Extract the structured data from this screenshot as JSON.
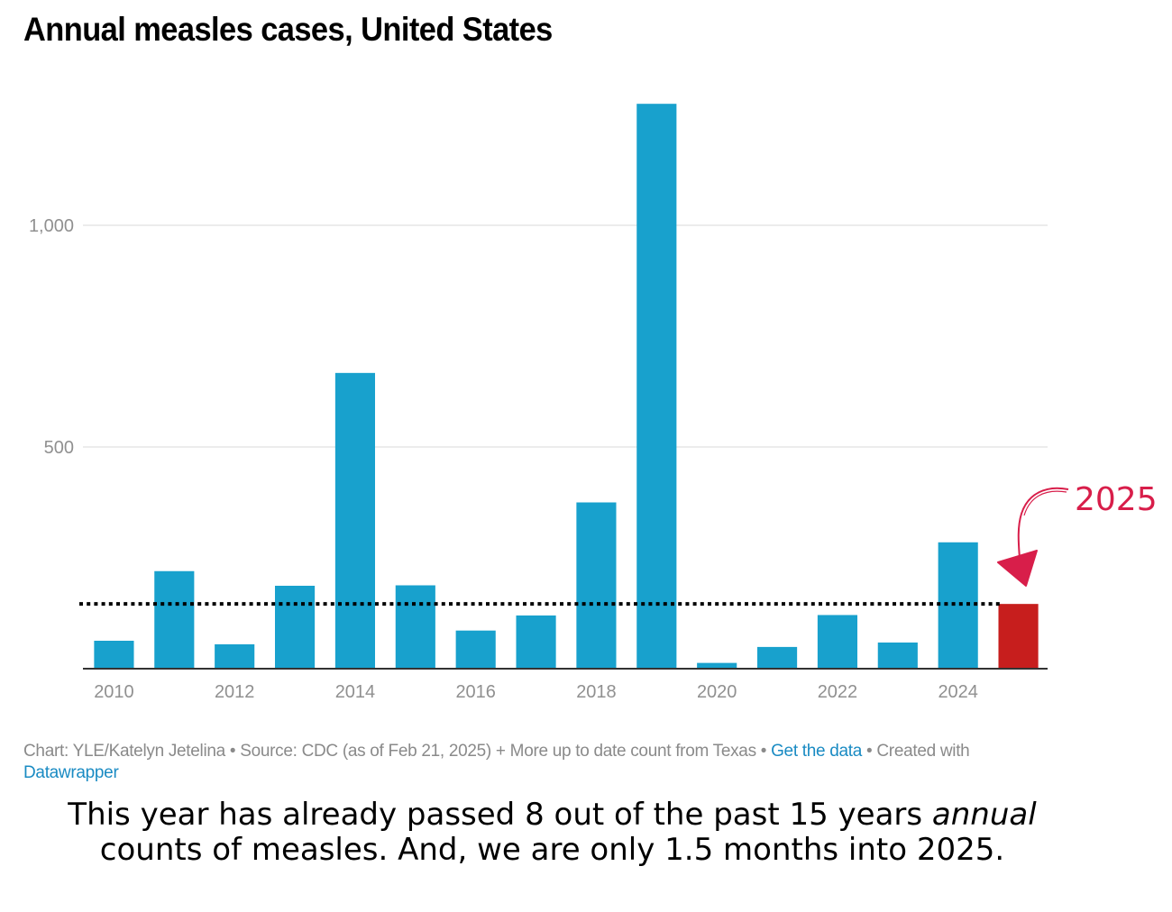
{
  "title": "Annual measles cases, United States",
  "chart_data": {
    "type": "bar",
    "title": "Annual measles cases, United States",
    "xlabel": "",
    "ylabel": "",
    "categories": [
      "2010",
      "2011",
      "2012",
      "2013",
      "2014",
      "2015",
      "2016",
      "2017",
      "2018",
      "2019",
      "2020",
      "2021",
      "2022",
      "2023",
      "2024",
      "2025"
    ],
    "values": [
      63,
      220,
      55,
      187,
      667,
      188,
      86,
      120,
      375,
      1274,
      13,
      49,
      121,
      59,
      285,
      146
    ],
    "highlight_category": "2025",
    "colors": {
      "default": "#18a1cd",
      "highlight": "#c71e1d",
      "reference_line": "#000000",
      "annotation": "#d81e4a"
    },
    "ylim": [
      0,
      1300
    ],
    "yticks": [
      500,
      1000
    ],
    "ytick_labels": [
      "500",
      "1,000"
    ],
    "xtick_labels": [
      "2010",
      "2012",
      "2014",
      "2016",
      "2018",
      "2020",
      "2022",
      "2024"
    ],
    "grid": true,
    "reference_line": {
      "style": "dotted",
      "value": 146
    },
    "annotation": {
      "text": "2025",
      "target": "2025",
      "style": "hand-drawn arrow"
    }
  },
  "footer": {
    "credit": "Chart: YLE/Katelyn Jetelina • Source: CDC (as of Feb 21, 2025) + More up to date count from Texas • ",
    "get_data_link": "Get the data",
    "created_with": " • Created with ",
    "datawrapper_link": "Datawrapper"
  },
  "caption": {
    "part1": "This year has already passed 8 out of the past 15 years",
    "italic": "annual",
    "part2": " counts of measles. And, we are only 1.5 months into 2025."
  }
}
